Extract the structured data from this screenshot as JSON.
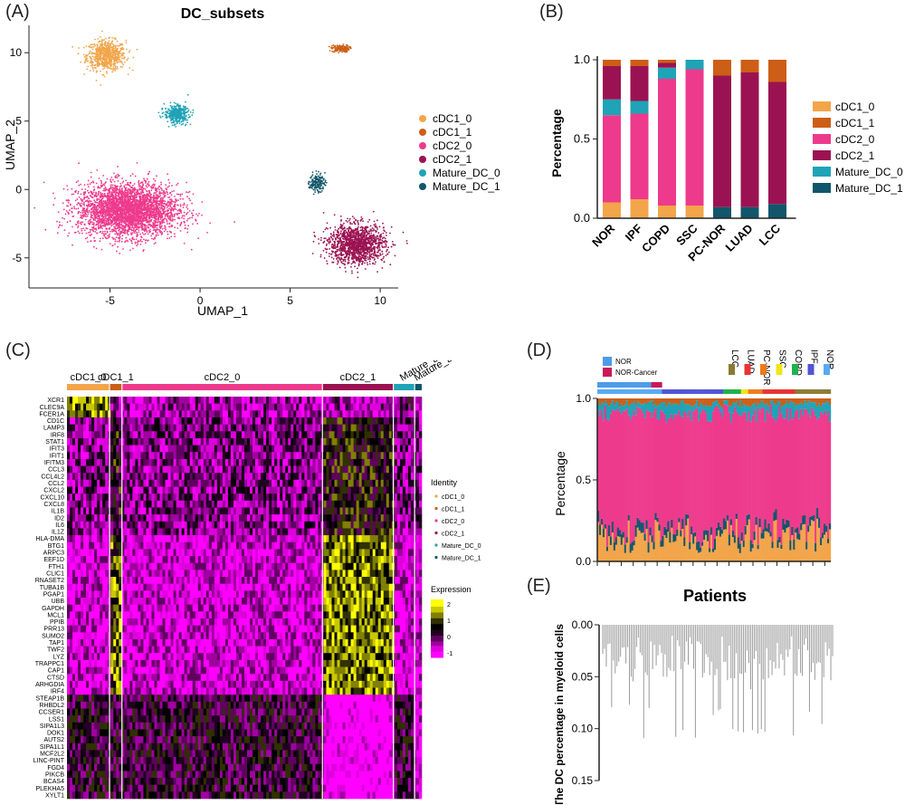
{
  "panels": {
    "A": "(A)",
    "B": "(B)",
    "C": "(C)",
    "D": "(D)",
    "E": "(E)"
  },
  "colors": {
    "cDC1_0": "#f2a54a",
    "cDC1_1": "#cc5e17",
    "cDC2_0": "#ee3a8c",
    "cDC2_1": "#9b1252",
    "Mature_DC_0": "#1fa3b6",
    "Mature_DC_1": "#11566b",
    "NOR": "#4d9be8",
    "NOR-Cancer": "#c9185a",
    "LCC": "#8c7b34",
    "LUAD": "#e83434",
    "PC-NOR": "#ef7a1a",
    "SSC": "#f0e61c",
    "COPD": "#1eb24a",
    "IPF": "#5154d6",
    "NOR_d": "#58aaf2"
  },
  "chart_data": [
    {
      "id": "A",
      "type": "scatter",
      "title": "DC_subsets",
      "xlabel": "UMAP_1",
      "ylabel": "UMAP_2",
      "xlim": [
        -9.5,
        11
      ],
      "ylim": [
        -7.2,
        12
      ],
      "xticks": [
        -5,
        0,
        5,
        10
      ],
      "yticks": [
        -5,
        0,
        5,
        10
      ],
      "legend": [
        "cDC1_0",
        "cDC1_1",
        "cDC2_0",
        "cDC2_1",
        "Mature_DC_0",
        "Mature_DC_1"
      ],
      "legend_position": "right",
      "clusters": [
        {
          "name": "cDC1_0",
          "cx": -5.2,
          "cy": 9.8,
          "sx": 0.9,
          "sy": 0.9,
          "n": 700
        },
        {
          "name": "cDC1_1",
          "cx": 7.8,
          "cy": 10.3,
          "sx": 0.4,
          "sy": 0.22,
          "n": 150
        },
        {
          "name": "cDC2_0",
          "cx": -4.0,
          "cy": -1.5,
          "sx": 2.3,
          "sy": 1.6,
          "n": 3500
        },
        {
          "name": "cDC2_1",
          "cx": 8.7,
          "cy": -4.0,
          "sx": 1.3,
          "sy": 1.2,
          "n": 1400
        },
        {
          "name": "Mature_DC_0",
          "cx": -1.3,
          "cy": 5.5,
          "sx": 0.55,
          "sy": 0.55,
          "n": 400
        },
        {
          "name": "Mature_DC_1",
          "cx": 6.5,
          "cy": 0.5,
          "sx": 0.35,
          "sy": 0.55,
          "n": 150
        }
      ]
    },
    {
      "id": "B",
      "type": "bar",
      "stacked": true,
      "ylabel": "Percentage",
      "ylim": [
        0,
        1.0
      ],
      "yticks": [
        "0.0",
        "0.5",
        "1.0"
      ],
      "categories": [
        "NOR",
        "IPF",
        "COPD",
        "SSC",
        "PC-NOR",
        "LUAD",
        "LCC"
      ],
      "legend_position": "right",
      "series": [
        {
          "name": "cDC1_0",
          "values": [
            0.1,
            0.12,
            0.08,
            0.08,
            0.0,
            0.0,
            0.0
          ]
        },
        {
          "name": "Mature_DC_1",
          "values": [
            0.0,
            0.0,
            0.0,
            0.0,
            0.07,
            0.07,
            0.09
          ]
        },
        {
          "name": "cDC2_0",
          "values": [
            0.55,
            0.54,
            0.8,
            0.86,
            0.0,
            0.0,
            0.0
          ]
        },
        {
          "name": "Mature_DC_0",
          "values": [
            0.1,
            0.08,
            0.07,
            0.06,
            0.0,
            0.0,
            0.0
          ]
        },
        {
          "name": "cDC2_1",
          "values": [
            0.21,
            0.22,
            0.03,
            0.0,
            0.83,
            0.85,
            0.77
          ]
        },
        {
          "name": "cDC1_1",
          "values": [
            0.04,
            0.04,
            0.02,
            0.0,
            0.1,
            0.08,
            0.14
          ]
        }
      ],
      "legend": [
        "cDC1_0",
        "cDC1_1",
        "cDC2_0",
        "cDC2_1",
        "Mature_DC_0",
        "Mature_DC_1"
      ]
    },
    {
      "id": "C",
      "type": "heatmap",
      "groups": [
        {
          "name": "cDC1_0",
          "frac": 0.12
        },
        {
          "name": "cDC1_1",
          "frac": 0.035
        },
        {
          "name": "cDC2_0",
          "frac": 0.565
        },
        {
          "name": "cDC2_1",
          "frac": 0.2
        },
        {
          "name": "Mature_DC_0",
          "frac": 0.06
        },
        {
          "name": "Mature_DC_1",
          "frac": 0.02
        }
      ],
      "genes": [
        "XCR1",
        "CLEC9A",
        "FCER1A",
        "CD1C",
        "LAMP3",
        "IRF8",
        "STAT1",
        "IFIT3",
        "IFIT1",
        "IFITM3",
        "CCL3",
        "CCL4L2",
        "CCL2",
        "CXCL2",
        "CXCL10",
        "CXCL8",
        "IL1B",
        "ID2",
        "IL6",
        "IL1Z",
        "HLA-DMA",
        "BTG1",
        "ARPC3",
        "EEF1D",
        "FTH1",
        "CLIC1",
        "RNASET2",
        "TUBA1B",
        "PGAP1",
        "UBB",
        "GAPDH",
        "MCL1",
        "PPIB",
        "PRR13",
        "SUMO2",
        "TAP1",
        "TWF2",
        "LYZ",
        "TRAPPC1",
        "CAP1",
        "CTSD",
        "ARHGDIA",
        "IRF4",
        "STEAP1B",
        "RHBDL2",
        "CCSER1",
        "LSS1",
        "SIPA1L3",
        "DOK1",
        "AUTS2",
        "SIPA1L1",
        "MCF2L2",
        "LINC-PINT",
        "FGD4",
        "PIKCB",
        "BCAS4",
        "PLEKHA5",
        "XYLT1"
      ],
      "legend_title": "Identity",
      "legend": [
        "cDC1_0",
        "cDC1_1",
        "cDC2_0",
        "cDC2_1",
        "Mature_DC_0",
        "Mature_DC_1"
      ],
      "colorbar_title": "Expression",
      "colorbar_ticks": [
        "2",
        "1",
        "0",
        "-1"
      ]
    },
    {
      "id": "D",
      "type": "bar",
      "stacked": true,
      "ylabel": "Percentage",
      "ylim": [
        0,
        1.0
      ],
      "yticks": [
        "0.0",
        "0.5",
        "1.0"
      ],
      "n_bars": 130,
      "legend_top": [
        "NOR",
        "NOR-Cancer"
      ],
      "legend_disease": [
        "LCC",
        "LUAD",
        "PC-NOR",
        "SSC",
        "COPD",
        "IPF",
        "NOR"
      ]
    },
    {
      "id": "E",
      "type": "bar",
      "title": "Patients",
      "ylabel": "The DC percentage in myeloid cells",
      "ylim": [
        0.15,
        0.0
      ],
      "yticks": [
        "0.00",
        "0.05",
        "0.10",
        "0.15"
      ],
      "n_bars": 130
    }
  ]
}
